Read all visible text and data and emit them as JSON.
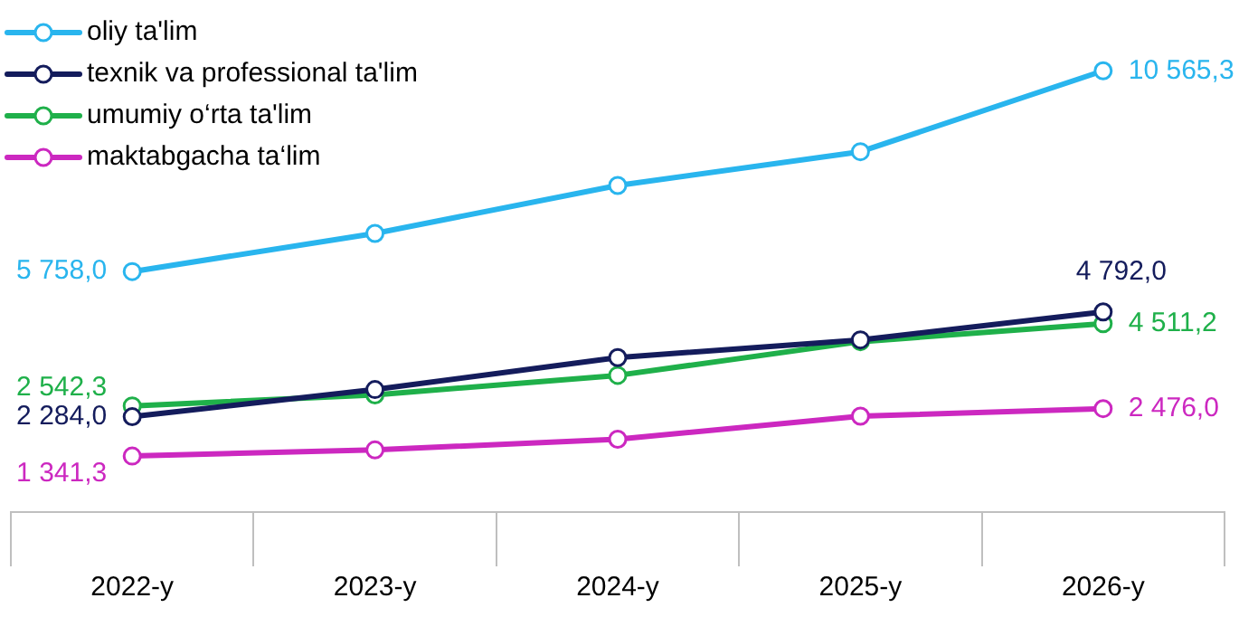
{
  "chart_data": {
    "type": "line",
    "categories": [
      "2022-y",
      "2023-y",
      "2024-y",
      "2025-y",
      "2026-y"
    ],
    "legend": "top left",
    "marker": "circle",
    "line_style": "solid",
    "series": [
      {
        "name": "oliy ta'lim",
        "color": "#29b5ee",
        "values": [
          5758.0,
          6672,
          7820,
          8628,
          10565.3
        ],
        "value_labels": [
          "5 758,0",
          null,
          null,
          null,
          "10 565,3"
        ]
      },
      {
        "name": "texnik va professional ta'lim",
        "color": "#141c5c",
        "values": [
          2284.0,
          2933,
          3698,
          4123,
          4792.0
        ],
        "value_labels": [
          "2 284,0",
          null,
          null,
          null,
          "4 792,0"
        ]
      },
      {
        "name": "umumiy o‘rta ta'lim",
        "color": "#1fb04a",
        "values": [
          2542.3,
          2805,
          3273,
          4080,
          4511.2
        ],
        "value_labels": [
          "2 542,3",
          null,
          null,
          null,
          "4 511,2"
        ]
      },
      {
        "name": "maktabgacha ta‘lim",
        "color": "#cc28c0",
        "values": [
          1341.3,
          1488,
          1743,
          2295,
          2476.0
        ],
        "value_labels": [
          "1 341,3",
          null,
          null,
          null,
          "2 476,0"
        ]
      }
    ]
  }
}
